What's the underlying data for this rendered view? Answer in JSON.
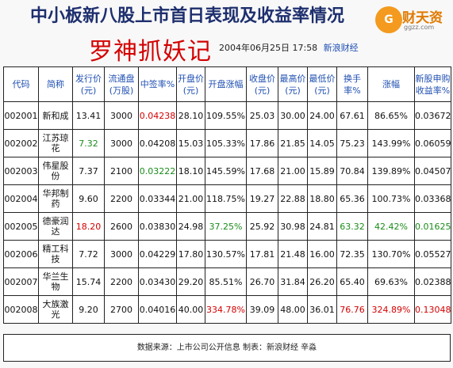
{
  "header": {
    "title": "中小板新八股上市首日表现及收益率情况",
    "subtitle": "罗神抓妖记",
    "datetime": "2004年06月25日  17:58",
    "source": "新浪财经"
  },
  "logo": {
    "mark": "G",
    "name": "财天资",
    "domain": "ggzz.com"
  },
  "table": {
    "headers": [
      "代码",
      "简称",
      "发行价(元)",
      "流通盘(万股)",
      "中签率%",
      "开盘价(元)",
      "开盘涨幅",
      "收盘价(元)",
      "最高价(元)",
      "最低价(元)",
      "换手率%",
      "涨幅",
      "新股申购收益率%"
    ],
    "rows": [
      [
        "002001",
        "新和成",
        "13.41",
        "3000",
        "0.04238",
        "28.10",
        "109.55%",
        "25.03",
        "30.00",
        "24.00",
        "67.61",
        "86.65%",
        "0.03672"
      ],
      [
        "002002",
        "江苏琼花",
        "7.32",
        "3000",
        "0.04208",
        "15.03",
        "105.33%",
        "17.86",
        "21.85",
        "14.05",
        "75.23",
        "143.99%",
        "0.06059"
      ],
      [
        "002003",
        "伟星股份",
        "7.37",
        "2100",
        "0.03222",
        "18.10",
        "145.59%",
        "17.68",
        "21.00",
        "15.89",
        "70.84",
        "139.89%",
        "0.04507"
      ],
      [
        "002004",
        "华邦制药",
        "9.60",
        "2200",
        "0.03344",
        "21.00",
        "118.75%",
        "19.27",
        "22.88",
        "18.80",
        "65.36",
        "100.73%",
        "0.03368"
      ],
      [
        "002005",
        "德豪润达",
        "18.20",
        "2600",
        "0.03830",
        "24.98",
        "37.25%",
        "25.92",
        "30.98",
        "24.81",
        "63.32",
        "42.42%",
        "0.01625"
      ],
      [
        "002006",
        "精工科技",
        "7.72",
        "3000",
        "0.04229",
        "17.80",
        "130.57%",
        "17.81",
        "21.48",
        "16.00",
        "72.35",
        "130.70%",
        "0.05527"
      ],
      [
        "002007",
        "华兰生物",
        "15.74",
        "2200",
        "0.03430",
        "29.20",
        "85.51%",
        "26.70",
        "31.84",
        "26.20",
        "65.40",
        "69.63%",
        "0.02388"
      ],
      [
        "002008",
        "大族激光",
        "9.20",
        "2700",
        "0.04016",
        "40.00",
        "334.78%",
        "39.09",
        "48.00",
        "36.01",
        "76.76",
        "324.89%",
        "0.13048"
      ]
    ],
    "highlights": [
      {
        "row": 0,
        "col": 4,
        "color": "red"
      },
      {
        "row": 1,
        "col": 2,
        "color": "green"
      },
      {
        "row": 2,
        "col": 4,
        "color": "green"
      },
      {
        "row": 4,
        "col": 2,
        "color": "red"
      },
      {
        "row": 4,
        "col": 6,
        "color": "green"
      },
      {
        "row": 4,
        "col": 10,
        "color": "green"
      },
      {
        "row": 4,
        "col": 11,
        "color": "green"
      },
      {
        "row": 4,
        "col": 12,
        "color": "green"
      },
      {
        "row": 7,
        "col": 6,
        "color": "red"
      },
      {
        "row": 7,
        "col": 10,
        "color": "red"
      },
      {
        "row": 7,
        "col": 11,
        "color": "red"
      },
      {
        "row": 7,
        "col": 12,
        "color": "red"
      }
    ]
  },
  "footer": {
    "text": "数据来源：上市公司公开信息      制表：新浪财经 辛淼"
  }
}
